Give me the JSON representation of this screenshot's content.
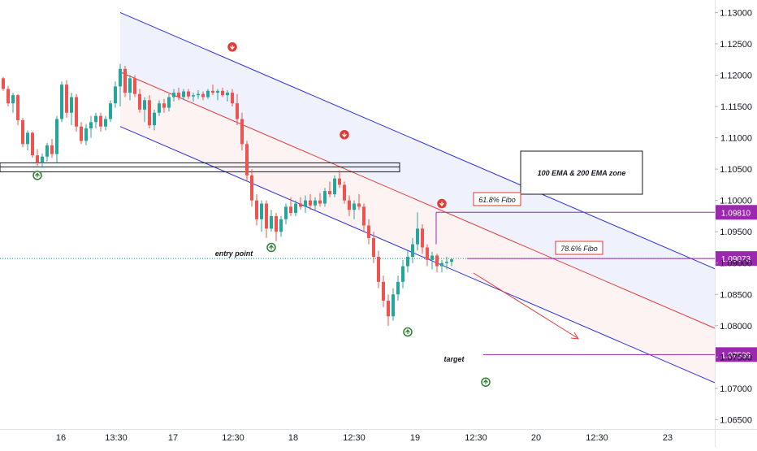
{
  "chart_data": {
    "type": "candlestick",
    "instrument_hint": "EURUSD",
    "y_axis": {
      "ticks": [
        "1.13000",
        "1.12500",
        "1.12000",
        "1.11500",
        "1.11000",
        "1.10500",
        "1.10000",
        "1.09500",
        "1.09000",
        "1.08500",
        "1.08000",
        "1.07500",
        "1.07000",
        "1.06500"
      ],
      "ylim": [
        1.0635,
        1.132
      ]
    },
    "x_axis": {
      "ticks": [
        "16",
        "13:30",
        "17",
        "12:30",
        "18",
        "12:30",
        "19",
        "12:30",
        "20",
        "12:30",
        "23"
      ]
    },
    "candles": [
      [
        1.1195,
        1.1197,
        1.1175,
        1.1178
      ],
      [
        1.1178,
        1.1183,
        1.115,
        1.1155
      ],
      [
        1.1155,
        1.1172,
        1.114,
        1.1168
      ],
      [
        1.1168,
        1.117,
        1.112,
        1.1128
      ],
      [
        1.1128,
        1.1132,
        1.1085,
        1.109
      ],
      [
        1.109,
        1.1112,
        1.108,
        1.1108
      ],
      [
        1.1108,
        1.111,
        1.1068,
        1.1072
      ],
      [
        1.1072,
        1.1082,
        1.1055,
        1.106
      ],
      [
        1.106,
        1.1075,
        1.1052,
        1.107
      ],
      [
        1.107,
        1.1092,
        1.1062,
        1.1088
      ],
      [
        1.1088,
        1.1098,
        1.1068,
        1.1074
      ],
      [
        1.1074,
        1.1135,
        1.106,
        1.113
      ],
      [
        1.113,
        1.119,
        1.1125,
        1.1185
      ],
      [
        1.1185,
        1.1192,
        1.1132,
        1.114
      ],
      [
        1.114,
        1.1172,
        1.112,
        1.1165
      ],
      [
        1.1165,
        1.117,
        1.111,
        1.1118
      ],
      [
        1.1118,
        1.1125,
        1.109,
        1.1095
      ],
      [
        1.1095,
        1.1122,
        1.1088,
        1.1115
      ],
      [
        1.1115,
        1.1135,
        1.11,
        1.1125
      ],
      [
        1.1125,
        1.114,
        1.1115,
        1.1135
      ],
      [
        1.1135,
        1.114,
        1.111,
        1.1118
      ],
      [
        1.1118,
        1.1135,
        1.1112,
        1.113
      ],
      [
        1.113,
        1.116,
        1.1125,
        1.1155
      ],
      [
        1.1155,
        1.119,
        1.1148,
        1.1182
      ],
      [
        1.1182,
        1.1218,
        1.115,
        1.121
      ],
      [
        1.121,
        1.1215,
        1.1165,
        1.1172
      ],
      [
        1.1172,
        1.12,
        1.116,
        1.1195
      ],
      [
        1.1195,
        1.12,
        1.1165,
        1.117
      ],
      [
        1.117,
        1.1178,
        1.114,
        1.1145
      ],
      [
        1.1145,
        1.1165,
        1.1125,
        1.116
      ],
      [
        1.116,
        1.1168,
        1.1115,
        1.112
      ],
      [
        1.112,
        1.1145,
        1.1112,
        1.114
      ],
      [
        1.114,
        1.116,
        1.1135,
        1.1155
      ],
      [
        1.1155,
        1.1162,
        1.114,
        1.1148
      ],
      [
        1.1148,
        1.117,
        1.1142,
        1.1165
      ],
      [
        1.1165,
        1.1178,
        1.1158,
        1.1172
      ],
      [
        1.1172,
        1.118,
        1.116,
        1.1165
      ],
      [
        1.1165,
        1.1178,
        1.116,
        1.1174
      ],
      [
        1.1174,
        1.1178,
        1.1162,
        1.1166
      ],
      [
        1.1166,
        1.1172,
        1.1158,
        1.1168
      ],
      [
        1.1168,
        1.1176,
        1.1162,
        1.117
      ],
      [
        1.117,
        1.1174,
        1.116,
        1.1165
      ],
      [
        1.1165,
        1.1178,
        1.1162,
        1.1175
      ],
      [
        1.1175,
        1.1185,
        1.1168,
        1.1172
      ],
      [
        1.1172,
        1.1178,
        1.116,
        1.1175
      ],
      [
        1.1175,
        1.118,
        1.1165,
        1.1168
      ],
      [
        1.1168,
        1.1176,
        1.1158,
        1.1172
      ],
      [
        1.1172,
        1.1178,
        1.115,
        1.1155
      ],
      [
        1.1155,
        1.117,
        1.112,
        1.113
      ],
      [
        1.113,
        1.114,
        1.108,
        1.109
      ],
      [
        1.109,
        1.1095,
        1.103,
        1.104
      ],
      [
        1.104,
        1.105,
        1.099,
        1.1
      ],
      [
        1.1,
        1.101,
        1.096,
        1.097
      ],
      [
        1.097,
        1.1,
        1.095,
        1.0995
      ],
      [
        1.0995,
        1.1,
        1.094,
        1.0955
      ],
      [
        1.0955,
        1.0985,
        1.095,
        1.0975
      ],
      [
        1.0975,
        1.098,
        1.0935,
        1.095
      ],
      [
        1.095,
        1.0975,
        1.0942,
        1.097
      ],
      [
        1.097,
        1.0995,
        1.0962,
        1.099
      ],
      [
        1.099,
        1.1005,
        1.0975,
        1.098
      ],
      [
        1.098,
        1.1,
        1.0975,
        1.0995
      ],
      [
        1.0995,
        1.1005,
        1.0985,
        1.099
      ],
      [
        1.099,
        1.1008,
        1.098,
        1.1
      ],
      [
        1.1,
        1.101,
        1.0985,
        1.0992
      ],
      [
        1.0992,
        1.1005,
        1.0985,
        1.1
      ],
      [
        1.1,
        1.1012,
        1.099,
        1.0995
      ],
      [
        1.0995,
        1.102,
        1.099,
        1.1015
      ],
      [
        1.1015,
        1.103,
        1.1005,
        1.101
      ],
      [
        1.101,
        1.104,
        1.1005,
        1.1035
      ],
      [
        1.1035,
        1.1048,
        1.102,
        1.1025
      ],
      [
        1.1025,
        1.103,
        1.0995,
        1.1
      ],
      [
        1.1,
        1.1008,
        1.0975,
        1.0985
      ],
      [
        1.0985,
        1.1,
        1.097,
        1.0995
      ],
      [
        1.0995,
        1.101,
        1.0985,
        1.099
      ],
      [
        1.099,
        1.0995,
        1.095,
        1.096
      ],
      [
        1.096,
        1.097,
        1.093,
        1.094
      ],
      [
        1.094,
        1.095,
        1.09,
        1.091
      ],
      [
        1.091,
        1.092,
        1.086,
        1.087
      ],
      [
        1.087,
        1.088,
        1.083,
        1.084
      ],
      [
        1.084,
        1.085,
        1.08,
        1.0815
      ],
      [
        1.0815,
        1.086,
        1.0808,
        1.085
      ],
      [
        1.085,
        1.088,
        1.084,
        1.087
      ],
      [
        1.087,
        1.0905,
        1.086,
        1.0895
      ],
      [
        1.0895,
        1.092,
        1.0885,
        1.091
      ],
      [
        1.091,
        1.094,
        1.09,
        1.093
      ],
      [
        1.093,
        1.0981,
        1.092,
        1.0955
      ],
      [
        1.0955,
        1.0962,
        1.0915,
        1.0925
      ],
      [
        1.0925,
        1.093,
        1.0895,
        1.0905
      ],
      [
        1.0905,
        1.0918,
        1.089,
        1.0912
      ],
      [
        1.0912,
        1.0915,
        1.0885,
        1.0895
      ],
      [
        1.0895,
        1.0905,
        1.0885,
        1.09
      ],
      [
        1.09,
        1.091,
        1.089,
        1.0902
      ],
      [
        1.0902,
        1.0908,
        1.0895,
        1.0906
      ]
    ],
    "colors": {
      "up": "#26a69a",
      "down": "#ef5350",
      "axis_text": "#131722"
    },
    "channel": {
      "description": "descending regression channel",
      "start": {
        "candle_index": 24,
        "upper": 1.13,
        "mid": 1.1205,
        "lower": 1.1118
      },
      "end": {
        "candle_index": 200,
        "upper": 1.071,
        "mid": 1.0615,
        "lower": 1.0528
      }
    },
    "horizontal_levels": [
      {
        "label": "1.09810",
        "price": 1.0981,
        "color": "#9c27b0"
      },
      {
        "label": "1.09073",
        "price": 1.09073,
        "color": "#9c27b0"
      },
      {
        "label": "1.07539",
        "price": 1.07539,
        "color": "#9c27b0"
      }
    ],
    "entry_line": {
      "price": 1.09073,
      "label": "entry point",
      "color": "#089981"
    },
    "zone_box": {
      "top": 1.106,
      "bottom": 1.1045
    },
    "annotations": {
      "fibo_618": "61.8% Fibo",
      "fibo_786": "78.6% Fibo",
      "ema_zone": "100 EMA & 200 EMA zone",
      "target": "target",
      "entry": "entry point"
    },
    "signals": [
      {
        "dir": "up",
        "candle_index": 7,
        "price": 1.104
      },
      {
        "dir": "down",
        "candle_index": 47,
        "price": 1.1245
      },
      {
        "dir": "up",
        "candle_index": 55,
        "price": 1.0925
      },
      {
        "dir": "down",
        "candle_index": 70,
        "price": 1.1105
      },
      {
        "dir": "up",
        "candle_index": 83,
        "price": 1.079
      },
      {
        "dir": "down",
        "candle_index": 90,
        "price": 1.0995
      },
      {
        "dir": "up",
        "candle_index": 99,
        "price": 1.071
      }
    ]
  }
}
